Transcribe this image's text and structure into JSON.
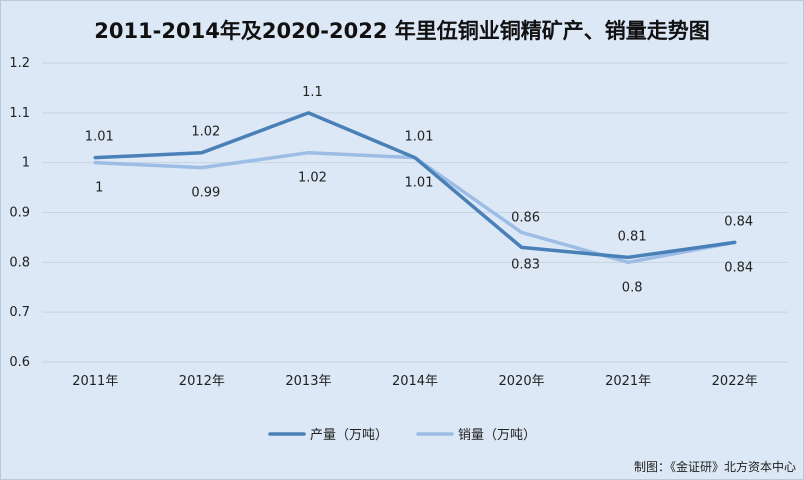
{
  "chart_data": {
    "type": "line",
    "title": "2011-2014年及2020-2022 年里伍铜业铜精矿产、销量走势图",
    "categories": [
      "2011年",
      "2012年",
      "2013年",
      "2014年",
      "2020年",
      "2021年",
      "2022年"
    ],
    "series": [
      {
        "name": "产量（万吨）",
        "values": [
          1.01,
          1.02,
          1.1,
          1.01,
          0.83,
          0.81,
          0.84
        ],
        "color": "#4a80b8"
      },
      {
        "name": "销量（万吨）",
        "values": [
          1,
          0.99,
          1.02,
          1.01,
          0.86,
          0.8,
          0.84
        ],
        "color": "#9dbde6"
      }
    ],
    "ylim": [
      0.6,
      1.2
    ],
    "yticks": [
      "0.6",
      "0.7",
      "0.8",
      "0.9",
      "1",
      "1.1",
      "1.2"
    ],
    "grid": true,
    "legend": "bottom-center"
  },
  "credit": "制图：《金证研》北方资本中心"
}
